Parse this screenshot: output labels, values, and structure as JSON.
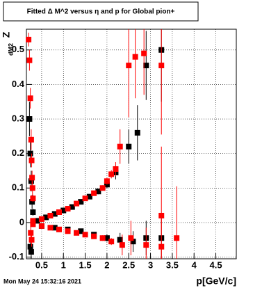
{
  "chart_data": {
    "type": "scatter",
    "title": "Fitted Δ M^2 versus η and p for Global pion+",
    "y_label": "Z",
    "y_label_sub": "dM2",
    "x_label": "p[GeV/c]",
    "footer": "Mon May 24 15:32:16 2021",
    "xlim": [
      0.15,
      4.97
    ],
    "ylim": [
      -0.105,
      0.56
    ],
    "xticks": [
      0.5,
      1,
      1.5,
      2,
      2.5,
      3,
      3.5,
      4,
      4.5
    ],
    "yticks": [
      -0.1,
      0,
      0.1,
      0.2,
      0.3,
      0.4,
      0.5
    ],
    "grid": true,
    "series": [
      {
        "name": "black",
        "color": "#000000",
        "x": [
          0.4,
          0.6,
          0.8,
          1.0,
          1.2,
          1.4,
          1.6,
          1.8,
          2.0,
          2.2,
          2.5,
          2.7,
          2.9,
          3.25,
          3.25,
          0.5,
          0.8,
          1.1,
          1.4,
          1.7,
          2.0,
          2.3,
          2.6,
          2.9,
          0.22,
          0.24,
          0.26,
          0.28,
          0.24,
          0.26,
          0.3
        ],
        "values": [
          0.005,
          0.015,
          0.025,
          0.035,
          0.045,
          0.06,
          0.075,
          0.09,
          0.11,
          0.145,
          0.22,
          0.26,
          0.455,
          0.5,
          -0.045,
          -0.01,
          -0.015,
          -0.02,
          -0.025,
          -0.035,
          -0.045,
          -0.05,
          -0.055,
          -0.045,
          0.3,
          0.2,
          0.12,
          0.06,
          -0.07,
          -0.085,
          0.03
        ],
        "errors": [
          0.003,
          0.003,
          0.004,
          0.004,
          0.005,
          0.005,
          0.006,
          0.008,
          0.01,
          0.02,
          0.05,
          0.08,
          0.1,
          0.15,
          0.06,
          0.003,
          0.004,
          0.004,
          0.005,
          0.006,
          0.01,
          0.02,
          0.03,
          0.05,
          0.05,
          0.04,
          0.03,
          0.02,
          0.02,
          0.02,
          0.01
        ]
      },
      {
        "name": "red",
        "color": "#ff0000",
        "x": [
          0.3,
          0.5,
          0.7,
          0.9,
          1.1,
          1.3,
          1.5,
          1.7,
          1.9,
          2.0,
          2.1,
          2.2,
          2.3,
          2.5,
          2.65,
          2.85,
          3.25,
          3.25,
          0.3,
          0.5,
          0.7,
          0.9,
          1.1,
          1.3,
          1.5,
          1.7,
          1.9,
          2.1,
          2.35,
          2.55,
          2.9,
          3.25,
          3.6,
          0.2,
          0.22,
          0.24,
          0.26,
          0.27,
          0.28,
          0.29,
          0.3,
          0.25,
          0.27
        ],
        "values": [
          0.005,
          0.01,
          0.02,
          0.03,
          0.04,
          0.055,
          0.07,
          0.085,
          0.1,
          0.12,
          0.14,
          0.155,
          0.22,
          0.455,
          0.48,
          0.49,
          0.455,
          0.02,
          -0.005,
          -0.01,
          -0.015,
          -0.02,
          -0.025,
          -0.03,
          -0.035,
          -0.04,
          -0.045,
          -0.055,
          -0.065,
          -0.045,
          -0.065,
          -0.07,
          -0.045,
          0.53,
          0.47,
          0.36,
          0.24,
          0.18,
          0.13,
          0.1,
          0.07,
          -0.03,
          -0.05
        ],
        "errors": [
          0.003,
          0.003,
          0.003,
          0.004,
          0.004,
          0.005,
          0.005,
          0.006,
          0.008,
          0.01,
          0.012,
          0.02,
          0.05,
          0.15,
          0.12,
          0.12,
          0.2,
          0.2,
          0.003,
          0.003,
          0.003,
          0.004,
          0.004,
          0.005,
          0.005,
          0.006,
          0.008,
          0.01,
          0.03,
          0.05,
          0.05,
          0.08,
          0.15,
          0.02,
          0.03,
          0.03,
          0.03,
          0.02,
          0.02,
          0.02,
          0.01,
          0.02,
          0.02
        ]
      }
    ]
  }
}
